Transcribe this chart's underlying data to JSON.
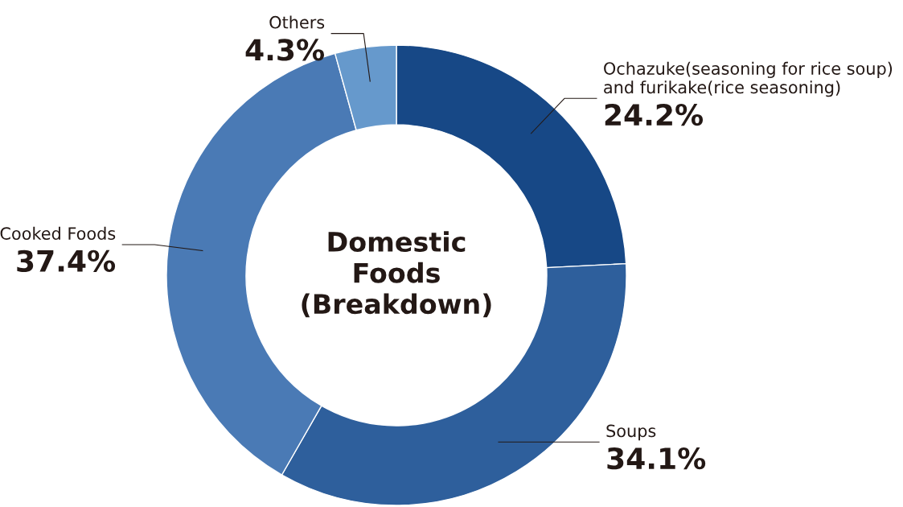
{
  "chart_data": {
    "type": "donut",
    "title": "Domestic\nFoods\n(Breakdown)",
    "categories": [
      "Ochazuke(seasoning for rice soup)\nand furikake(rice seasoning)",
      "Soups",
      "Cooked Foods",
      "Others"
    ],
    "values": [
      24.2,
      34.1,
      37.4,
      4.3
    ],
    "value_labels": [
      "24.2%",
      "34.1%",
      "37.4%",
      "4.3%"
    ],
    "colors": [
      "#174886",
      "#2e5f9c",
      "#4a7ab5",
      "#6699cc"
    ],
    "legend": false
  }
}
